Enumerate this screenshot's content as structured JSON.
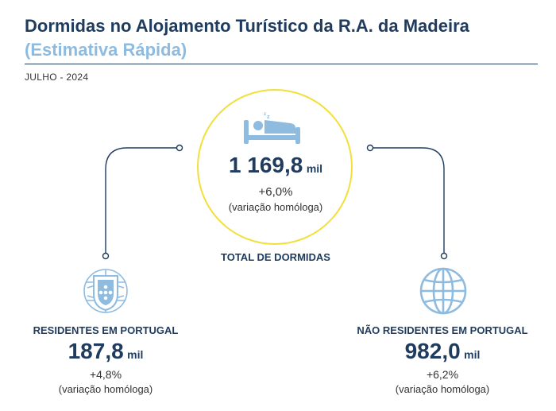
{
  "header": {
    "title": "Dormidas no Alojamento Turístico da R.A. da Madeira",
    "subtitle": "(Estimativa Rápida)",
    "period": "JULHO - 2024"
  },
  "total": {
    "value": "1 169,8",
    "unit": "mil",
    "change": "+6,0%",
    "note": "(variação homóloga)",
    "label": "TOTAL DE DORMIDAS",
    "icon": "bed-icon"
  },
  "residents": {
    "label": "RESIDENTES EM PORTUGAL",
    "value": "187,8",
    "unit": "mil",
    "change": "+4,8%",
    "note": "(variação homóloga)",
    "icon": "portugal-coat-of-arms-icon"
  },
  "nonresidents": {
    "label": "NÃO RESIDENTES EM PORTUGAL",
    "value": "982,0",
    "unit": "mil",
    "change": "+6,2%",
    "note": "(variação homóloga)",
    "icon": "globe-icon"
  },
  "colors": {
    "navy": "#1f3b5e",
    "light_blue": "#8ebbe0",
    "circle_yellow": "#f2df3a"
  }
}
